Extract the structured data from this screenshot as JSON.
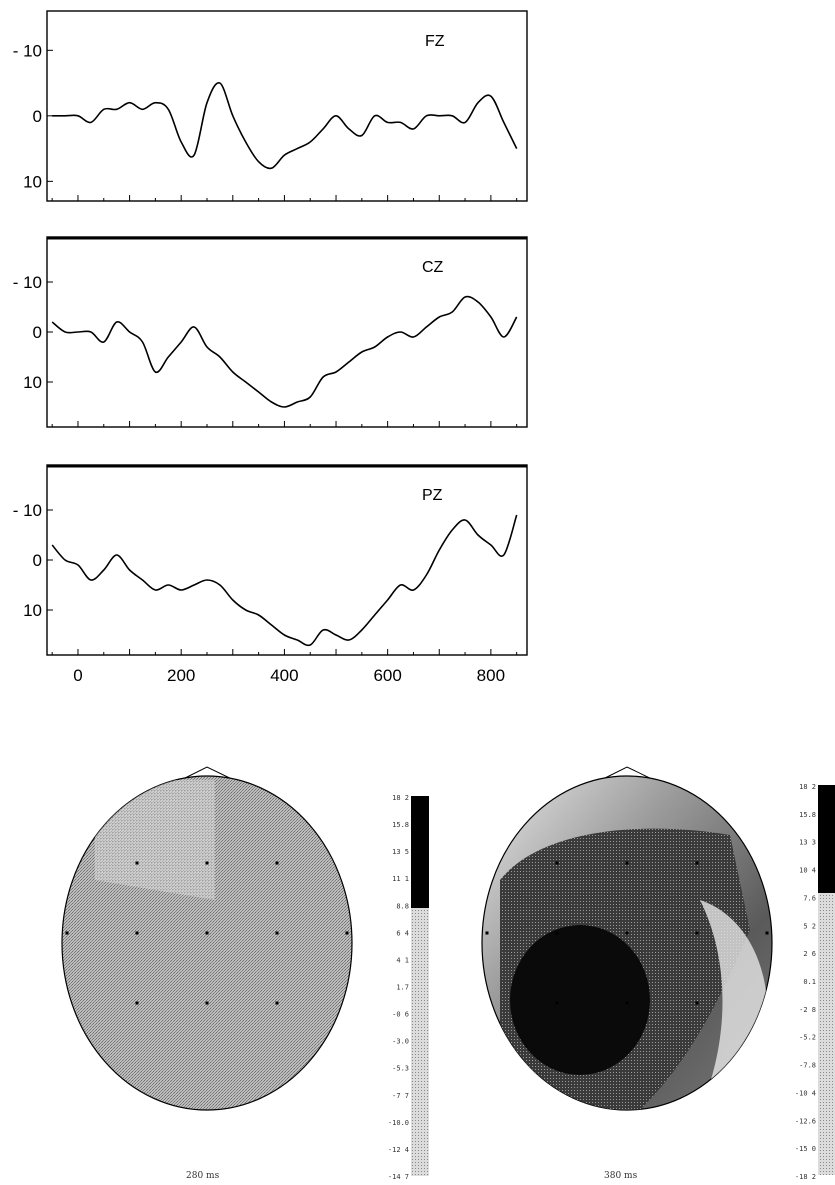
{
  "chart_data": [
    {
      "type": "line",
      "channel": "FZ",
      "x": [
        -50,
        -25,
        0,
        25,
        50,
        75,
        100,
        125,
        150,
        175,
        200,
        225,
        250,
        275,
        300,
        325,
        350,
        375,
        400,
        425,
        450,
        475,
        500,
        525,
        550,
        575,
        600,
        625,
        650,
        675,
        700,
        725,
        750,
        775,
        800,
        825,
        850
      ],
      "values": [
        0,
        0,
        0,
        1,
        -1,
        -1,
        -2,
        -1,
        -2,
        -1,
        4,
        6,
        -2,
        -5,
        0,
        4,
        7,
        8,
        6,
        5,
        4,
        2,
        0,
        2,
        3,
        0,
        1,
        1,
        2,
        0,
        0,
        0,
        1,
        -2,
        -3,
        1,
        5
      ],
      "yticks": [
        -10,
        0,
        10
      ],
      "ylim": [
        -16,
        13
      ],
      "xlim": [
        -60,
        870
      ]
    },
    {
      "type": "line",
      "channel": "CZ",
      "x": [
        -50,
        -25,
        0,
        25,
        50,
        75,
        100,
        125,
        150,
        175,
        200,
        225,
        250,
        275,
        300,
        325,
        350,
        375,
        400,
        425,
        450,
        475,
        500,
        525,
        550,
        575,
        600,
        625,
        650,
        675,
        700,
        725,
        750,
        775,
        800,
        825,
        850
      ],
      "values": [
        -2,
        0,
        0,
        0,
        2,
        -2,
        0,
        2,
        8,
        5,
        2,
        -1,
        3,
        5,
        8,
        10,
        12,
        14,
        15,
        14,
        13,
        9,
        8,
        6,
        4,
        3,
        1,
        0,
        1,
        -1,
        -3,
        -4,
        -7,
        -6,
        -3,
        1,
        -3
      ],
      "yticks": [
        -10,
        0,
        10
      ],
      "ylim": [
        -19,
        19
      ],
      "xlim": [
        -60,
        870
      ]
    },
    {
      "type": "line",
      "channel": "PZ",
      "x": [
        -50,
        -25,
        0,
        25,
        50,
        75,
        100,
        125,
        150,
        175,
        200,
        225,
        250,
        275,
        300,
        325,
        350,
        375,
        400,
        425,
        450,
        475,
        500,
        525,
        550,
        575,
        600,
        625,
        650,
        675,
        700,
        725,
        750,
        775,
        800,
        825,
        850
      ],
      "values": [
        -3,
        0,
        1,
        4,
        2,
        -1,
        2,
        4,
        6,
        5,
        6,
        5,
        4,
        5,
        8,
        10,
        11,
        13,
        15,
        16,
        17,
        14,
        15,
        16,
        14,
        11,
        8,
        5,
        6,
        3,
        -2,
        -6,
        -8,
        -5,
        -3,
        -1,
        -9
      ],
      "yticks": [
        -10,
        0,
        10
      ],
      "ylim": [
        -19,
        19
      ],
      "xlim": [
        -60,
        870
      ],
      "xticks": [
        0,
        200,
        400,
        600,
        800
      ]
    },
    {
      "type": "heatmap",
      "subtype": "scalp-topography",
      "caption": "280 ms",
      "colorbar_labels": [
        "18 2",
        "15.8",
        "13 5",
        "11 1",
        "8.8",
        "6 4",
        "4 1",
        "1.7",
        "-0 6",
        "-3.0",
        "-5.3",
        "-7 7",
        "-10.0",
        "-12 4",
        "-14 7"
      ],
      "electrodes": 11,
      "fill_shade": 0.44
    },
    {
      "type": "heatmap",
      "subtype": "scalp-topography",
      "caption": "380 ms",
      "colorbar_labels": [
        "18 2",
        "15.8",
        "13 3",
        "10 4",
        "7.6",
        "5 2",
        "2 6",
        "0.1",
        "-2 8",
        "-5.2",
        "-7.8",
        "-10 4",
        "-12.6",
        "-15 0",
        "-18 2"
      ],
      "electrodes": 11,
      "fill_shade": 0.56
    }
  ]
}
